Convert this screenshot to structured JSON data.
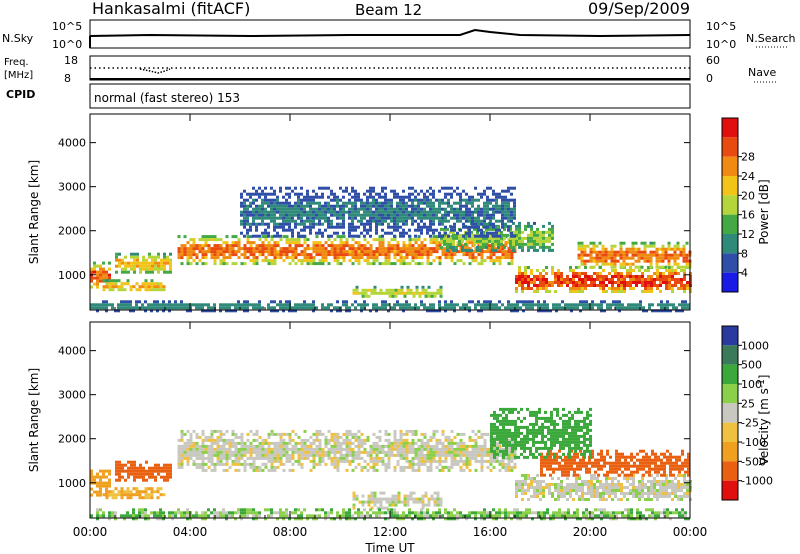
{
  "header": {
    "site": "Hankasalmi (fitACF)",
    "beam": "Beam 12",
    "date": "09/Sep/2009"
  },
  "ancillary": {
    "nsky_label": "N.Sky",
    "nsearch_label": "N.Search",
    "freq_label_1": "Freq.",
    "freq_label_2": "[MHz]",
    "nave_label": "Nave",
    "cpid_label": "CPID",
    "nsky_ticks": [
      "10^5",
      "10^0"
    ],
    "nsearch_ticks": [
      "10^5",
      "10^0"
    ],
    "freq_ticks": [
      "18",
      "8"
    ],
    "nave_ticks": [
      "60",
      "0"
    ],
    "cpid_text": "normal (fast stereo) 153"
  },
  "chart_data": [
    {
      "type": "heatmap",
      "title": "",
      "xlabel": "Time UT",
      "ylabel": "Slant Range [km]",
      "xticks": [
        "00:00",
        "04:00",
        "08:00",
        "12:00",
        "16:00",
        "20:00",
        "00:00"
      ],
      "xlim_hours": [
        0,
        24
      ],
      "yticks": [
        1000,
        2000,
        3000,
        4000
      ],
      "ylim": [
        200,
        4650
      ],
      "colorbar": {
        "label": "Power [dB]",
        "ticks": [
          "4",
          "8",
          "12",
          "16",
          "20",
          "24",
          "28"
        ],
        "colors": [
          "#1a1ae6",
          "#2e4ea8",
          "#2f8a7a",
          "#44a844",
          "#b5d63a",
          "#f2c418",
          "#f08a10",
          "#e84a10",
          "#e01010"
        ]
      },
      "regions": [
        {
          "t0": 0.0,
          "t1": 0.8,
          "r0": 700,
          "r1": 1300,
          "level": 0.85
        },
        {
          "t0": 0.5,
          "t1": 3.0,
          "r0": 650,
          "r1": 900,
          "level": 0.7
        },
        {
          "t0": 1.0,
          "t1": 3.2,
          "r0": 1050,
          "r1": 1500,
          "level": 0.65
        },
        {
          "t0": 3.5,
          "t1": 17.0,
          "r0": 1250,
          "r1": 1900,
          "level": 0.8
        },
        {
          "t0": 10.5,
          "t1": 14.0,
          "r0": 500,
          "r1": 750,
          "level": 0.55
        },
        {
          "t0": 14.0,
          "t1": 18.5,
          "r0": 1550,
          "r1": 2200,
          "level": 0.45
        },
        {
          "t0": 17.0,
          "t1": 24.0,
          "r0": 600,
          "r1": 1200,
          "level": 0.9
        },
        {
          "t0": 19.5,
          "t1": 24.0,
          "r0": 1150,
          "r1": 1750,
          "level": 0.8
        },
        {
          "t0": 6.0,
          "t1": 17.0,
          "r0": 1900,
          "r1": 3000,
          "level": 0.2
        },
        {
          "t0": 0.0,
          "t1": 24.0,
          "r0": 200,
          "r1": 420,
          "level": 0.25
        }
      ]
    },
    {
      "type": "heatmap",
      "title": "",
      "xlabel": "Time UT",
      "ylabel": "Slant Range [km]",
      "xticks": [
        "00:00",
        "04:00",
        "08:00",
        "12:00",
        "16:00",
        "20:00",
        "00:00"
      ],
      "xlim_hours": [
        0,
        24
      ],
      "yticks": [
        1000,
        2000,
        3000,
        4000
      ],
      "ylim": [
        200,
        4650
      ],
      "colorbar": {
        "label": "Velocity [m s^-1]",
        "ticks": [
          "1000",
          "500",
          "100",
          "25",
          "-25",
          "-100",
          "-500",
          "-1000"
        ],
        "colors": [
          "#2a3a9e",
          "#3a7a5a",
          "#3aa83a",
          "#8ad04a",
          "#c8c8c0",
          "#f0c040",
          "#f0a020",
          "#e86010",
          "#e01010"
        ]
      },
      "regions": [
        {
          "t0": 0.0,
          "t1": 0.8,
          "r0": 700,
          "r1": 1300,
          "v": -120
        },
        {
          "t0": 0.5,
          "t1": 3.0,
          "r0": 650,
          "r1": 900,
          "v": -70
        },
        {
          "t0": 1.0,
          "t1": 3.2,
          "r0": 1050,
          "r1": 1500,
          "v": -400
        },
        {
          "t0": 3.5,
          "t1": 17.0,
          "r0": 1250,
          "r1": 2200,
          "v": 0
        },
        {
          "t0": 10.5,
          "t1": 14.0,
          "r0": 450,
          "r1": 800,
          "v": 0
        },
        {
          "t0": 17.0,
          "t1": 24.0,
          "r0": 600,
          "r1": 1200,
          "v": 0
        },
        {
          "t0": 18.0,
          "t1": 24.0,
          "r0": 1150,
          "r1": 1750,
          "v": -350
        },
        {
          "t0": 16.0,
          "t1": 20.0,
          "r0": 1600,
          "r1": 2700,
          "v": 200
        },
        {
          "t0": 0.0,
          "t1": 24.0,
          "r0": 200,
          "r1": 420,
          "v": 50
        }
      ]
    }
  ]
}
